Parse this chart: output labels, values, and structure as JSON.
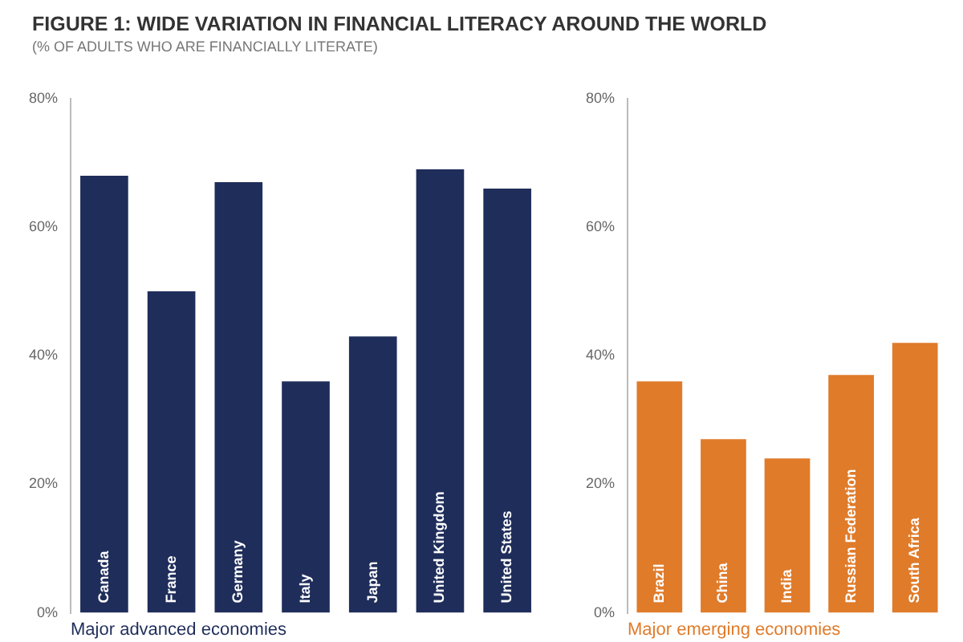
{
  "chart_data": [
    {
      "type": "bar",
      "title": "FIGURE 1: WIDE VARIATION IN FINANCIAL LITERACY AROUND THE WORLD",
      "subtitle": "(% OF ADULTS WHO ARE FINANCIALLY LITERATE)",
      "xlabel": "Major advanced economies",
      "categories": [
        "Canada",
        "France",
        "Germany",
        "Italy",
        "Japan",
        "United Kingdom",
        "United States"
      ],
      "series": [
        {
          "color": "#1f2d5a",
          "values": [
            68,
            50,
            67,
            36,
            43,
            69,
            66
          ]
        }
      ],
      "ylim": [
        0,
        80
      ],
      "yticks": [
        {
          "value": 0,
          "label": "0%"
        },
        {
          "value": 20,
          "label": "20%"
        },
        {
          "value": 40,
          "label": "40%"
        },
        {
          "value": 60,
          "label": "60%"
        },
        {
          "value": 80,
          "label": "80%"
        }
      ],
      "grid": false,
      "legend": false
    },
    {
      "type": "bar",
      "xlabel": "Major emerging economies",
      "categories": [
        "Brazil",
        "China",
        "India",
        "Russian Federation",
        "South Africa"
      ],
      "series": [
        {
          "color": "#e07b2a",
          "values": [
            36,
            27,
            24,
            37,
            42
          ]
        }
      ],
      "ylim": [
        0,
        80
      ],
      "yticks": [
        {
          "value": 0,
          "label": "0%"
        },
        {
          "value": 20,
          "label": "20%"
        },
        {
          "value": 40,
          "label": "40%"
        },
        {
          "value": 60,
          "label": "60%"
        },
        {
          "value": 80,
          "label": "80%"
        }
      ],
      "grid": false,
      "legend": false
    }
  ]
}
